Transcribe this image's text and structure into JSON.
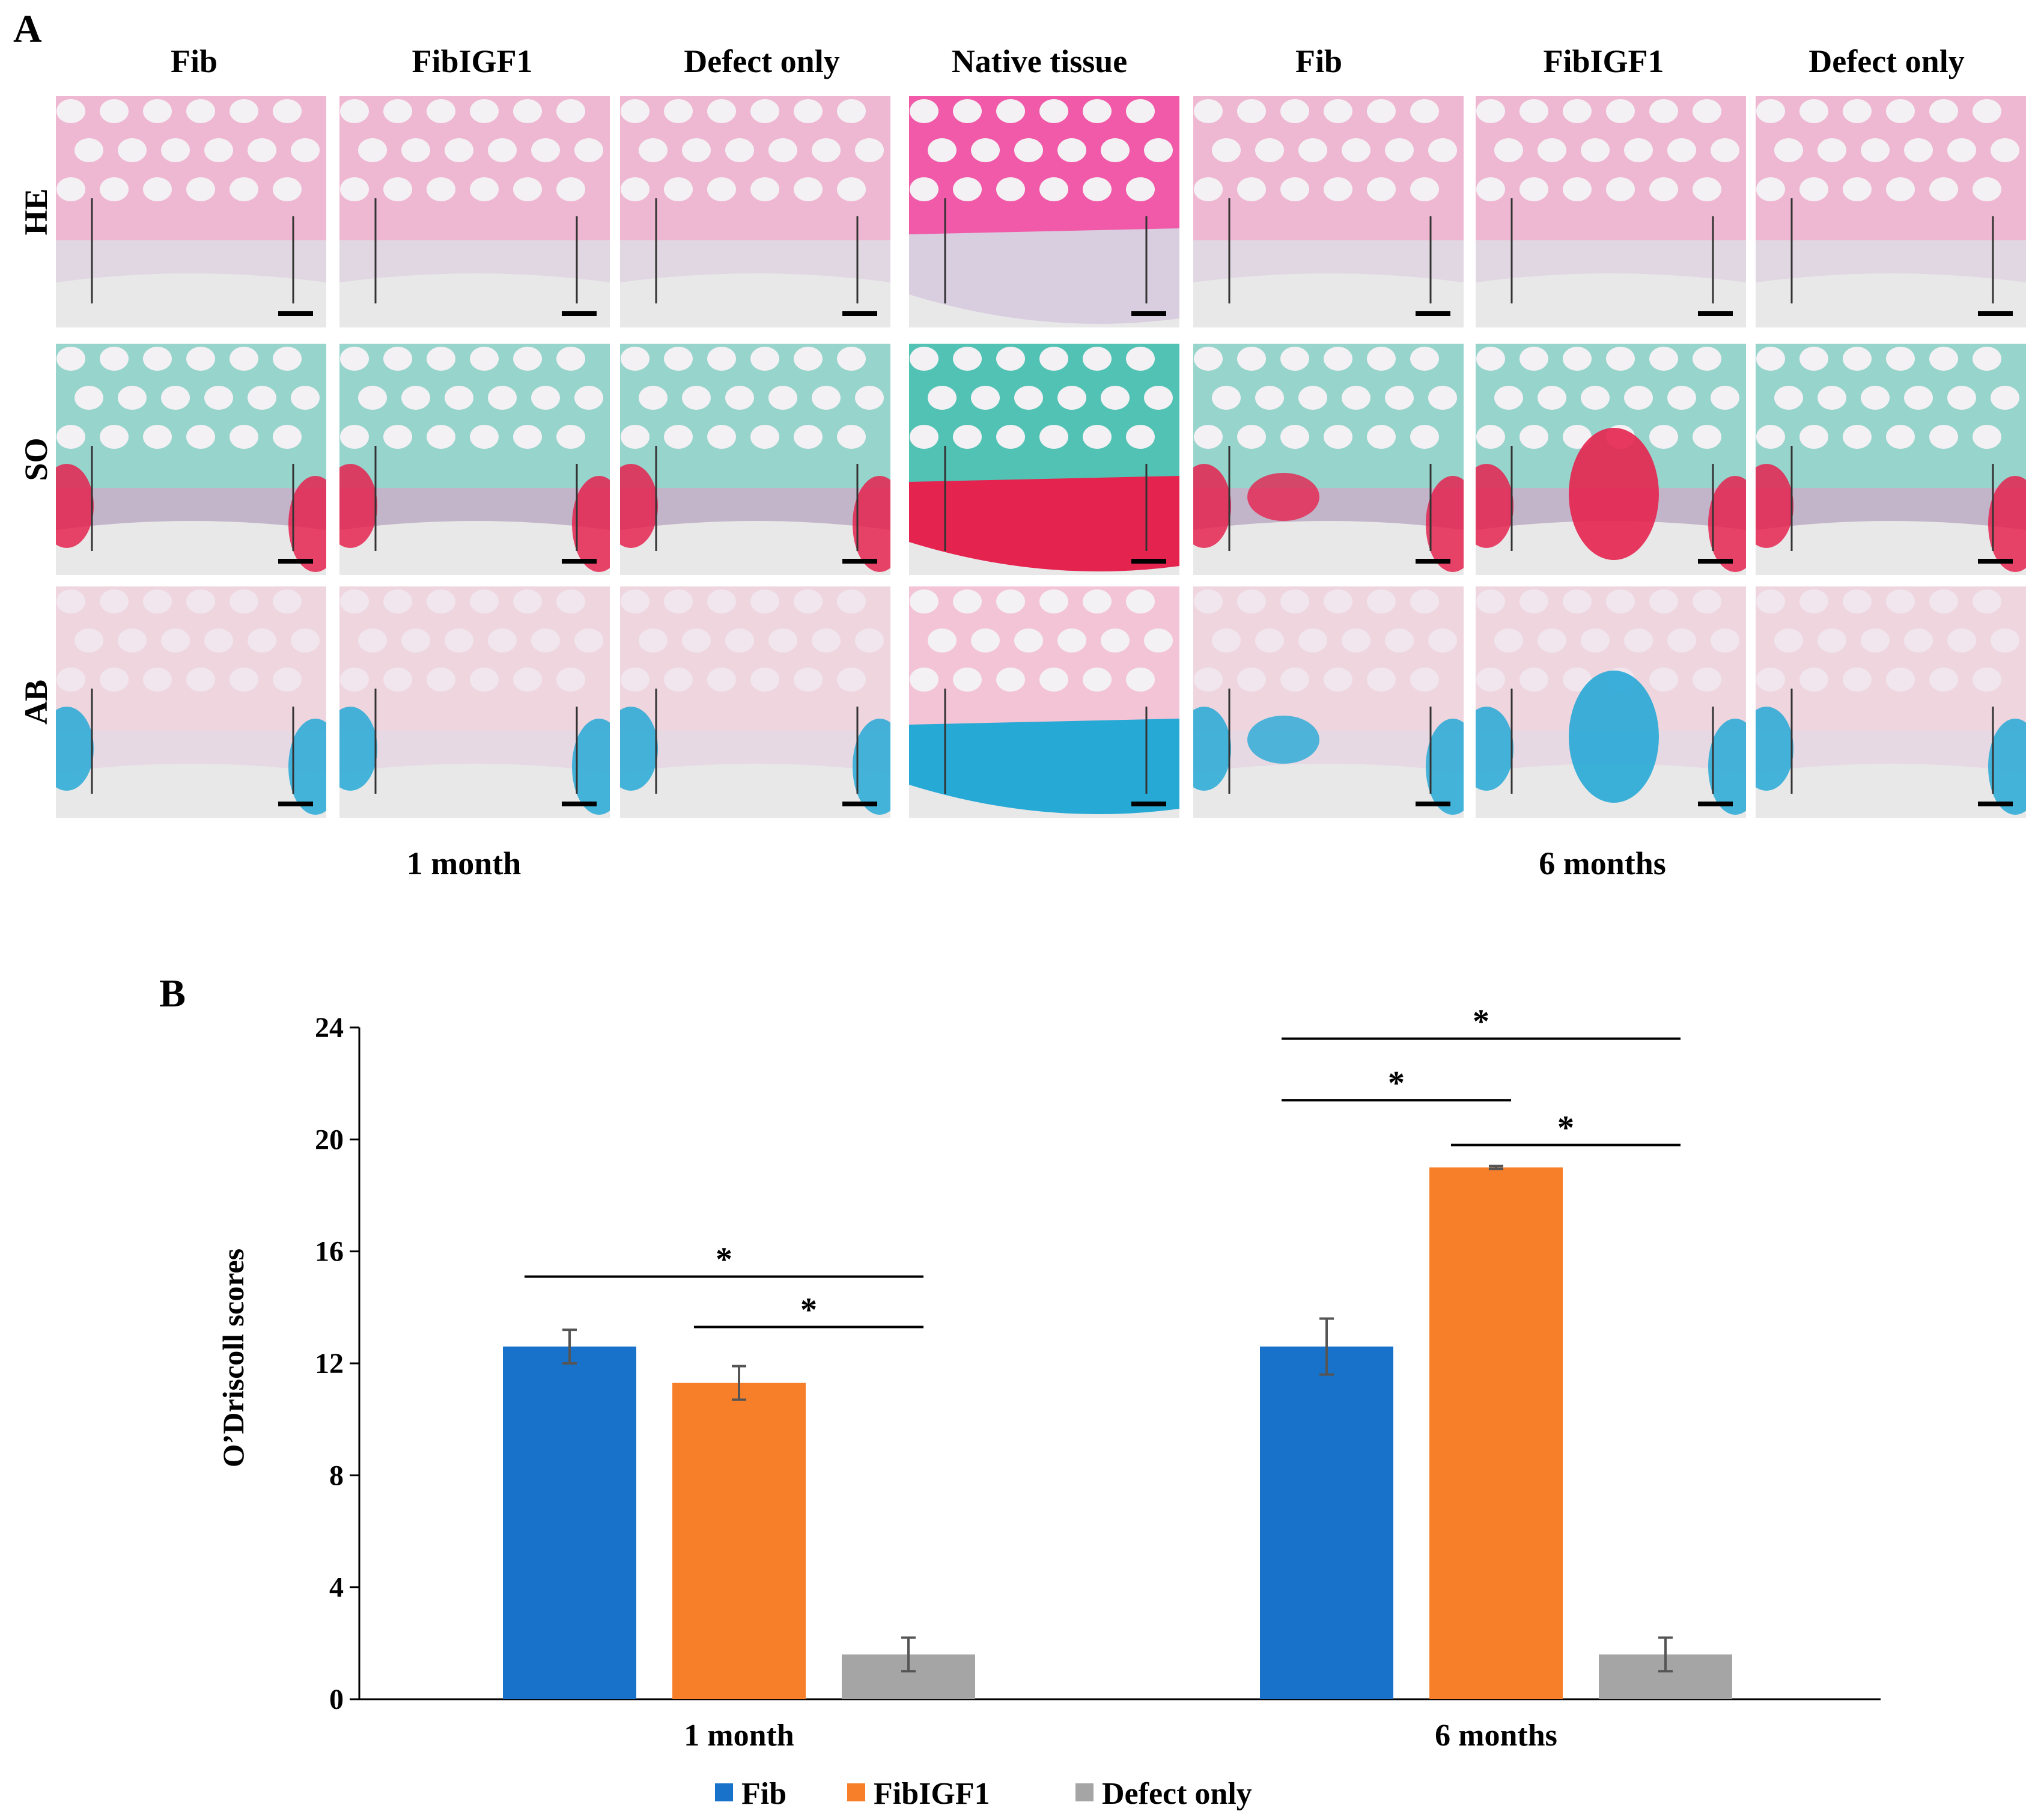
{
  "panel_a": {
    "letter": "A",
    "columns": [
      "Fib",
      "FibIGF1",
      "Defect only",
      "Native tissue",
      "Fib",
      "FibIGF1",
      "Defect only"
    ],
    "rows": [
      "HE",
      "SO",
      "AB"
    ],
    "time_labels": [
      "1 month",
      "6 months"
    ],
    "colors": {
      "he_bone": "#f48fc0",
      "he_matrix": "#ddd2e0",
      "he_native": "#f05aa8",
      "so_bone": "#52c2b4",
      "so_red": "#e5234f",
      "so_matrix": "#b8a8c0",
      "ab_bone": "#f3c4d6",
      "ab_blue": "#27a9d6",
      "ab_matrix": "#e5d4e2",
      "background": "#e8e8e8"
    }
  },
  "panel_b": {
    "letter": "B"
  },
  "chart_data": {
    "type": "bar",
    "title": "",
    "xlabel": "",
    "ylabel": "O’Driscoll scores",
    "categories": [
      "1 month",
      "6 months"
    ],
    "ylim": [
      0,
      24
    ],
    "yticks": [
      0,
      4,
      8,
      12,
      16,
      20,
      24
    ],
    "grid": false,
    "legend_position": "bottom",
    "series": [
      {
        "name": "Fib",
        "color": "#1872c9",
        "values": [
          12.6,
          12.6
        ],
        "errors": [
          0.6,
          1.0
        ]
      },
      {
        "name": "FibIGF1",
        "color": "#f77f2a",
        "values": [
          11.3,
          19.0
        ],
        "errors": [
          0.6,
          0.05
        ]
      },
      {
        "name": "Defect only",
        "color": "#a5a5a5",
        "values": [
          1.6,
          1.6
        ],
        "errors": [
          0.6,
          0.6
        ]
      }
    ],
    "significance": [
      {
        "category": 0,
        "from": 0,
        "to": 2,
        "y": 15.1,
        "label": "*"
      },
      {
        "category": 0,
        "from": 1,
        "to": 2,
        "y": 13.3,
        "label": "*"
      },
      {
        "category": 1,
        "from": 0,
        "to": 1,
        "y": 21.4,
        "label": "*"
      },
      {
        "category": 1,
        "from": 0,
        "to": 2,
        "y": 23.6,
        "label": "*"
      },
      {
        "category": 1,
        "from": 1,
        "to": 2,
        "y": 19.8,
        "label": "*"
      }
    ]
  }
}
